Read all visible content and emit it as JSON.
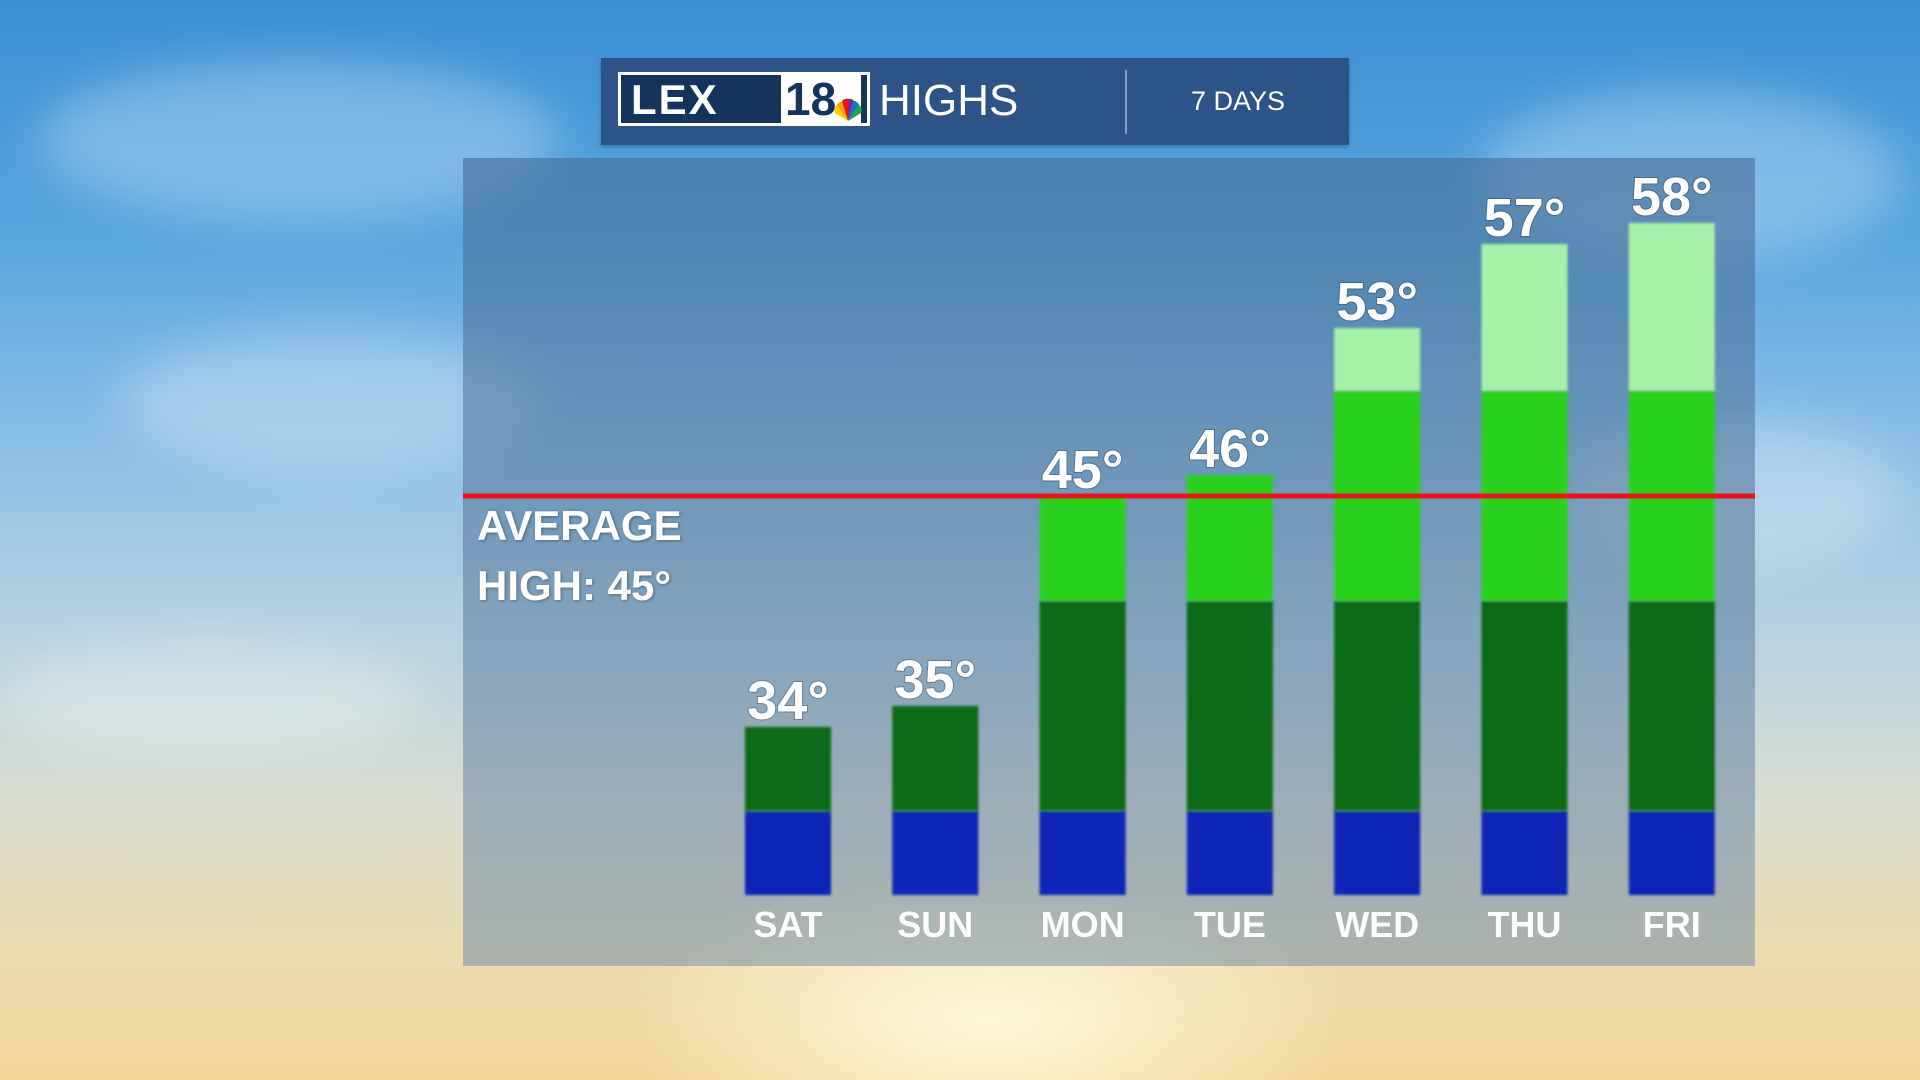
{
  "header": {
    "logo_text": "LEX",
    "logo_number": "18",
    "title": "HIGHS",
    "range": "7 DAYS"
  },
  "average_label_line1": "AVERAGE",
  "average_label_line2": "HIGH: 45°",
  "colors": {
    "average_line": "#e8141a",
    "band_blue": "#1028b8",
    "band_dark_green": "#0a6a12",
    "band_green": "#2ad11c",
    "band_light_green": "#a6f0a8",
    "title_bar": "#2c5486"
  },
  "chart_data": {
    "type": "bar",
    "categories": [
      "SAT",
      "SUN",
      "MON",
      "TUE",
      "WED",
      "THU",
      "FRI"
    ],
    "values": [
      34,
      35,
      45,
      46,
      53,
      57,
      58
    ],
    "value_labels": [
      "34°",
      "35°",
      "45°",
      "46°",
      "53°",
      "57°",
      "58°"
    ],
    "unit": "°",
    "reference_line": {
      "value": 45,
      "label": "AVERAGE HIGH: 45°"
    },
    "color_bands": [
      {
        "from": 26,
        "to": 30,
        "color": "#1028b8"
      },
      {
        "from": 30,
        "to": 40,
        "color": "#0a6a12"
      },
      {
        "from": 40,
        "to": 50,
        "color": "#2ad11c"
      },
      {
        "from": 50,
        "to": 60,
        "color": "#a6f0a8"
      }
    ],
    "ylim": [
      26,
      60
    ],
    "grid": false,
    "xlabel": "",
    "ylabel": ""
  }
}
